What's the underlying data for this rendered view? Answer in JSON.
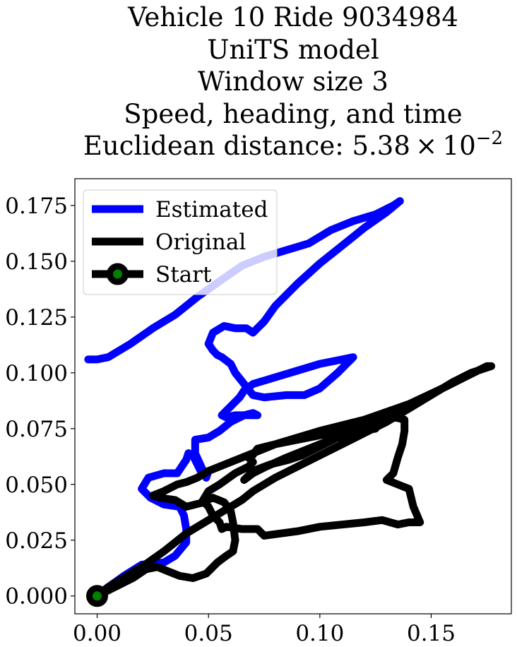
{
  "chart_data": {
    "type": "line",
    "title_lines": [
      "Vehicle 10 Ride 9034984",
      "UniTS model",
      "Window size 3",
      "Speed, heading, and time"
    ],
    "title_metric_label": "Euclidean distance: ",
    "title_metric_value": "5.38 × 10",
    "title_metric_exponent": "−2",
    "xlabel": "",
    "ylabel": "",
    "xlim": [
      -0.01,
      0.186
    ],
    "ylim": [
      -0.008,
      0.187
    ],
    "x_ticks": [
      0.0,
      0.05,
      0.1,
      0.15
    ],
    "x_tick_labels": [
      "0.00",
      "0.05",
      "0.10",
      "0.15"
    ],
    "y_ticks": [
      0.0,
      0.025,
      0.05,
      0.075,
      0.1,
      0.125,
      0.15,
      0.175
    ],
    "y_tick_labels": [
      "0.000",
      "0.025",
      "0.050",
      "0.075",
      "0.100",
      "0.125",
      "0.150",
      "0.175"
    ],
    "grid": false,
    "legend_position": "top-left",
    "legend": [
      {
        "label": "Estimated",
        "color": "#0000ff",
        "marker": false
      },
      {
        "label": "Original",
        "color": "#000000",
        "marker": false
      },
      {
        "label": "Start",
        "color": "#000000",
        "marker": true,
        "marker_face": "#008000"
      }
    ],
    "series": [
      {
        "name": "Estimated",
        "color": "#0000ff",
        "points": [
          [
            0.0,
            0.0
          ],
          [
            0.005,
            0.004
          ],
          [
            0.012,
            0.009
          ],
          [
            0.02,
            0.014
          ],
          [
            0.03,
            0.015
          ],
          [
            0.035,
            0.018
          ],
          [
            0.04,
            0.024
          ],
          [
            0.04,
            0.03
          ],
          [
            0.039,
            0.036
          ],
          [
            0.037,
            0.04
          ],
          [
            0.03,
            0.041
          ],
          [
            0.024,
            0.044
          ],
          [
            0.02,
            0.048
          ],
          [
            0.023,
            0.053
          ],
          [
            0.03,
            0.055
          ],
          [
            0.036,
            0.055
          ],
          [
            0.038,
            0.058
          ],
          [
            0.04,
            0.061
          ],
          [
            0.041,
            0.064
          ],
          [
            0.043,
            0.063
          ],
          [
            0.047,
            0.055
          ],
          [
            0.05,
            0.056
          ],
          [
            0.049,
            0.053
          ],
          [
            0.044,
            0.064
          ],
          [
            0.044,
            0.07
          ],
          [
            0.05,
            0.071
          ],
          [
            0.055,
            0.074
          ],
          [
            0.06,
            0.078
          ],
          [
            0.066,
            0.081
          ],
          [
            0.07,
            0.082
          ],
          [
            0.072,
            0.081
          ],
          [
            0.068,
            0.081
          ],
          [
            0.062,
            0.081
          ],
          [
            0.058,
            0.08
          ],
          [
            0.056,
            0.081
          ],
          [
            0.06,
            0.085
          ],
          [
            0.062,
            0.087
          ],
          [
            0.064,
            0.089
          ],
          [
            0.066,
            0.092
          ],
          [
            0.07,
            0.095
          ],
          [
            0.08,
            0.098
          ],
          [
            0.09,
            0.101
          ],
          [
            0.1,
            0.104
          ],
          [
            0.11,
            0.106
          ],
          [
            0.115,
            0.107
          ],
          [
            0.108,
            0.1
          ],
          [
            0.1,
            0.093
          ],
          [
            0.093,
            0.09
          ],
          [
            0.085,
            0.09
          ],
          [
            0.075,
            0.089
          ],
          [
            0.07,
            0.09
          ],
          [
            0.066,
            0.095
          ],
          [
            0.062,
            0.1
          ],
          [
            0.06,
            0.104
          ],
          [
            0.056,
            0.107
          ],
          [
            0.054,
            0.108
          ],
          [
            0.052,
            0.11
          ],
          [
            0.05,
            0.113
          ],
          [
            0.052,
            0.118
          ],
          [
            0.057,
            0.121
          ],
          [
            0.062,
            0.12
          ],
          [
            0.067,
            0.12
          ],
          [
            0.07,
            0.118
          ],
          [
            0.075,
            0.123
          ],
          [
            0.08,
            0.13
          ],
          [
            0.09,
            0.14
          ],
          [
            0.1,
            0.149
          ],
          [
            0.11,
            0.157
          ],
          [
            0.12,
            0.165
          ],
          [
            0.13,
            0.172
          ],
          [
            0.136,
            0.177
          ],
          [
            0.133,
            0.175
          ],
          [
            0.125,
            0.171
          ],
          [
            0.115,
            0.168
          ],
          [
            0.105,
            0.164
          ],
          [
            0.095,
            0.158
          ],
          [
            0.085,
            0.155
          ],
          [
            0.075,
            0.152
          ],
          [
            0.065,
            0.148
          ],
          [
            0.055,
            0.141
          ],
          [
            0.045,
            0.134
          ],
          [
            0.035,
            0.126
          ],
          [
            0.025,
            0.12
          ],
          [
            0.015,
            0.113
          ],
          [
            0.01,
            0.11
          ],
          [
            0.005,
            0.107
          ],
          [
            0.0,
            0.106
          ],
          [
            -0.004,
            0.106
          ]
        ]
      },
      {
        "name": "Original",
        "color": "#000000",
        "points": [
          [
            0.0,
            0.0
          ],
          [
            0.008,
            0.004
          ],
          [
            0.016,
            0.008
          ],
          [
            0.022,
            0.012
          ],
          [
            0.027,
            0.013
          ],
          [
            0.032,
            0.011
          ],
          [
            0.037,
            0.009
          ],
          [
            0.043,
            0.008
          ],
          [
            0.049,
            0.01
          ],
          [
            0.054,
            0.015
          ],
          [
            0.058,
            0.018
          ],
          [
            0.061,
            0.02
          ],
          [
            0.062,
            0.025
          ],
          [
            0.061,
            0.033
          ],
          [
            0.06,
            0.038
          ],
          [
            0.057,
            0.042
          ],
          [
            0.052,
            0.044
          ],
          [
            0.047,
            0.042
          ],
          [
            0.05,
            0.047
          ],
          [
            0.055,
            0.05
          ],
          [
            0.062,
            0.055
          ],
          [
            0.068,
            0.058
          ],
          [
            0.07,
            0.06
          ],
          [
            0.068,
            0.062
          ],
          [
            0.069,
            0.062
          ],
          [
            0.072,
            0.066
          ],
          [
            0.08,
            0.068
          ],
          [
            0.09,
            0.07
          ],
          [
            0.1,
            0.072
          ],
          [
            0.11,
            0.074
          ],
          [
            0.12,
            0.076
          ],
          [
            0.125,
            0.075
          ],
          [
            0.115,
            0.073
          ],
          [
            0.105,
            0.07
          ],
          [
            0.095,
            0.066
          ],
          [
            0.085,
            0.062
          ],
          [
            0.076,
            0.058
          ],
          [
            0.07,
            0.055
          ],
          [
            0.066,
            0.052
          ],
          [
            0.07,
            0.056
          ],
          [
            0.078,
            0.059
          ],
          [
            0.086,
            0.061
          ],
          [
            0.092,
            0.063
          ],
          [
            0.1,
            0.067
          ],
          [
            0.11,
            0.072
          ],
          [
            0.12,
            0.077
          ],
          [
            0.13,
            0.081
          ],
          [
            0.138,
            0.079
          ],
          [
            0.138,
            0.074
          ],
          [
            0.137,
            0.068
          ],
          [
            0.135,
            0.062
          ],
          [
            0.133,
            0.055
          ],
          [
            0.13,
            0.052
          ],
          [
            0.135,
            0.05
          ],
          [
            0.14,
            0.048
          ],
          [
            0.142,
            0.04
          ],
          [
            0.145,
            0.033
          ],
          [
            0.14,
            0.033
          ],
          [
            0.135,
            0.032
          ],
          [
            0.128,
            0.034
          ],
          [
            0.12,
            0.033
          ],
          [
            0.1,
            0.031
          ],
          [
            0.09,
            0.029
          ],
          [
            0.075,
            0.027
          ],
          [
            0.072,
            0.03
          ],
          [
            0.065,
            0.03
          ],
          [
            0.058,
            0.031
          ],
          [
            0.056,
            0.03
          ],
          [
            0.055,
            0.033
          ],
          [
            0.052,
            0.036
          ],
          [
            0.05,
            0.04
          ],
          [
            0.048,
            0.042
          ],
          [
            0.04,
            0.04
          ],
          [
            0.035,
            0.043
          ],
          [
            0.028,
            0.044
          ],
          [
            0.025,
            0.045
          ],
          [
            0.03,
            0.047
          ],
          [
            0.036,
            0.05
          ],
          [
            0.04,
            0.051
          ],
          [
            0.045,
            0.053
          ],
          [
            0.05,
            0.056
          ],
          [
            0.06,
            0.06
          ],
          [
            0.07,
            0.064
          ],
          [
            0.08,
            0.068
          ],
          [
            0.1,
            0.074
          ],
          [
            0.12,
            0.079
          ],
          [
            0.14,
            0.086
          ],
          [
            0.155,
            0.093
          ],
          [
            0.165,
            0.098
          ],
          [
            0.175,
            0.103
          ],
          [
            0.177,
            0.103
          ],
          [
            0.168,
            0.1
          ],
          [
            0.16,
            0.096
          ],
          [
            0.15,
            0.09
          ],
          [
            0.14,
            0.084
          ],
          [
            0.13,
            0.078
          ],
          [
            0.12,
            0.073
          ],
          [
            0.11,
            0.068
          ],
          [
            0.1,
            0.063
          ],
          [
            0.09,
            0.058
          ],
          [
            0.08,
            0.053
          ],
          [
            0.07,
            0.047
          ],
          [
            0.065,
            0.043
          ],
          [
            0.06,
            0.04
          ],
          [
            0.055,
            0.037
          ],
          [
            0.05,
            0.034
          ],
          [
            0.045,
            0.031
          ],
          [
            0.04,
            0.028
          ],
          [
            0.035,
            0.024
          ],
          [
            0.03,
            0.02
          ],
          [
            0.02,
            0.013
          ],
          [
            0.01,
            0.007
          ],
          [
            0.005,
            0.004
          ],
          [
            0.0,
            0.0
          ]
        ]
      }
    ],
    "start_point": {
      "name": "Start",
      "x": 0.0,
      "y": 0.0,
      "edge_color": "#000000",
      "face_color": "#008000"
    }
  }
}
